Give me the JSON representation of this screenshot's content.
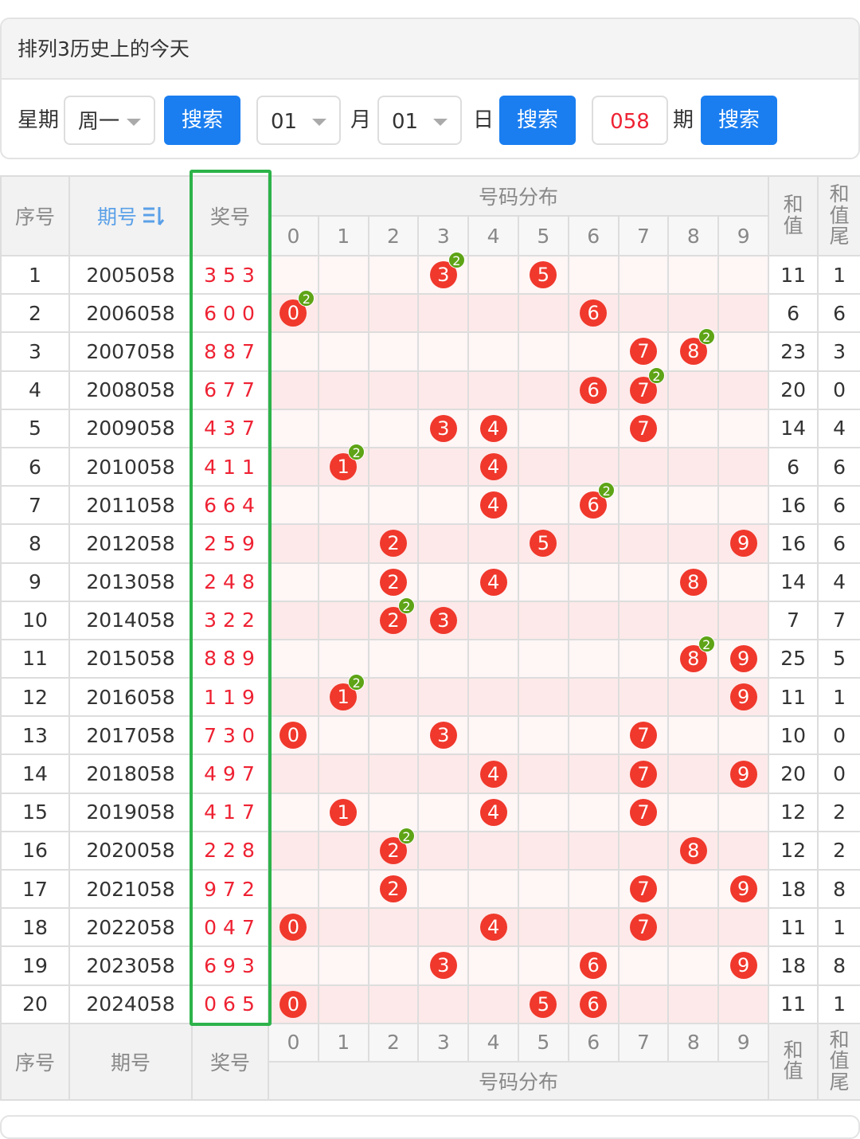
{
  "header": {
    "title": "排列3历史上的今天"
  },
  "form": {
    "week_label": "星期",
    "week_value": "周一",
    "search1": "搜索",
    "month_value": "01",
    "month_label": "月",
    "day_value": "01",
    "day_label": "日",
    "search2": "搜索",
    "issue_value": "058",
    "issue_label": "期",
    "search3": "搜索"
  },
  "table": {
    "header": {
      "no": "序号",
      "issue": "期号",
      "draw": "奖号",
      "dist": "号码分布",
      "digits": [
        0,
        1,
        2,
        3,
        4,
        5,
        6,
        7,
        8,
        9
      ],
      "sum": "和值",
      "tail": "和值尾"
    },
    "footer": {
      "no": "序号",
      "issue": "期号",
      "draw": "奖号",
      "dist": "号码分布",
      "digits": [
        0,
        1,
        2,
        3,
        4,
        5,
        6,
        7,
        8,
        9
      ],
      "sum": "和值",
      "tail": "和值尾"
    },
    "rows": [
      {
        "no": 1,
        "issue": "2005058",
        "draw": [
          3,
          5,
          3
        ],
        "balls": [
          {
            "digit": 3,
            "times": 2
          },
          {
            "digit": 5
          }
        ],
        "sum": 11,
        "tail": 1
      },
      {
        "no": 2,
        "issue": "2006058",
        "draw": [
          6,
          0,
          0
        ],
        "balls": [
          {
            "digit": 0,
            "times": 2
          },
          {
            "digit": 6
          }
        ],
        "sum": 6,
        "tail": 6
      },
      {
        "no": 3,
        "issue": "2007058",
        "draw": [
          8,
          8,
          7
        ],
        "balls": [
          {
            "digit": 7
          },
          {
            "digit": 8,
            "times": 2
          }
        ],
        "sum": 23,
        "tail": 3
      },
      {
        "no": 4,
        "issue": "2008058",
        "draw": [
          6,
          7,
          7
        ],
        "balls": [
          {
            "digit": 6
          },
          {
            "digit": 7,
            "times": 2
          }
        ],
        "sum": 20,
        "tail": 0
      },
      {
        "no": 5,
        "issue": "2009058",
        "draw": [
          4,
          3,
          7
        ],
        "balls": [
          {
            "digit": 3
          },
          {
            "digit": 4
          },
          {
            "digit": 7
          }
        ],
        "sum": 14,
        "tail": 4
      },
      {
        "no": 6,
        "issue": "2010058",
        "draw": [
          4,
          1,
          1
        ],
        "balls": [
          {
            "digit": 1,
            "times": 2
          },
          {
            "digit": 4
          }
        ],
        "sum": 6,
        "tail": 6
      },
      {
        "no": 7,
        "issue": "2011058",
        "draw": [
          6,
          6,
          4
        ],
        "balls": [
          {
            "digit": 4
          },
          {
            "digit": 6,
            "times": 2
          }
        ],
        "sum": 16,
        "tail": 6
      },
      {
        "no": 8,
        "issue": "2012058",
        "draw": [
          2,
          5,
          9
        ],
        "balls": [
          {
            "digit": 2
          },
          {
            "digit": 5
          },
          {
            "digit": 9
          }
        ],
        "sum": 16,
        "tail": 6
      },
      {
        "no": 9,
        "issue": "2013058",
        "draw": [
          2,
          4,
          8
        ],
        "balls": [
          {
            "digit": 2
          },
          {
            "digit": 4
          },
          {
            "digit": 8
          }
        ],
        "sum": 14,
        "tail": 4
      },
      {
        "no": 10,
        "issue": "2014058",
        "draw": [
          3,
          2,
          2
        ],
        "balls": [
          {
            "digit": 2,
            "times": 2
          },
          {
            "digit": 3
          }
        ],
        "sum": 7,
        "tail": 7
      },
      {
        "no": 11,
        "issue": "2015058",
        "draw": [
          8,
          8,
          9
        ],
        "balls": [
          {
            "digit": 8,
            "times": 2
          },
          {
            "digit": 9
          }
        ],
        "sum": 25,
        "tail": 5
      },
      {
        "no": 12,
        "issue": "2016058",
        "draw": [
          1,
          1,
          9
        ],
        "balls": [
          {
            "digit": 1,
            "times": 2
          },
          {
            "digit": 9
          }
        ],
        "sum": 11,
        "tail": 1
      },
      {
        "no": 13,
        "issue": "2017058",
        "draw": [
          7,
          3,
          0
        ],
        "balls": [
          {
            "digit": 0
          },
          {
            "digit": 3
          },
          {
            "digit": 7
          }
        ],
        "sum": 10,
        "tail": 0
      },
      {
        "no": 14,
        "issue": "2018058",
        "draw": [
          4,
          9,
          7
        ],
        "balls": [
          {
            "digit": 4
          },
          {
            "digit": 7
          },
          {
            "digit": 9
          }
        ],
        "sum": 20,
        "tail": 0
      },
      {
        "no": 15,
        "issue": "2019058",
        "draw": [
          4,
          1,
          7
        ],
        "balls": [
          {
            "digit": 1
          },
          {
            "digit": 4
          },
          {
            "digit": 7
          }
        ],
        "sum": 12,
        "tail": 2
      },
      {
        "no": 16,
        "issue": "2020058",
        "draw": [
          2,
          2,
          8
        ],
        "balls": [
          {
            "digit": 2,
            "times": 2
          },
          {
            "digit": 8
          }
        ],
        "sum": 12,
        "tail": 2
      },
      {
        "no": 17,
        "issue": "2021058",
        "draw": [
          9,
          7,
          2
        ],
        "balls": [
          {
            "digit": 2
          },
          {
            "digit": 7
          },
          {
            "digit": 9
          }
        ],
        "sum": 18,
        "tail": 8
      },
      {
        "no": 18,
        "issue": "2022058",
        "draw": [
          0,
          4,
          7
        ],
        "balls": [
          {
            "digit": 0
          },
          {
            "digit": 4
          },
          {
            "digit": 7
          }
        ],
        "sum": 11,
        "tail": 1
      },
      {
        "no": 19,
        "issue": "2023058",
        "draw": [
          6,
          9,
          3
        ],
        "balls": [
          {
            "digit": 3
          },
          {
            "digit": 6
          },
          {
            "digit": 9
          }
        ],
        "sum": 18,
        "tail": 8
      },
      {
        "no": 20,
        "issue": "2024058",
        "draw": [
          0,
          6,
          5
        ],
        "balls": [
          {
            "digit": 0
          },
          {
            "digit": 5
          },
          {
            "digit": 6
          }
        ],
        "sum": 11,
        "tail": 1
      }
    ]
  }
}
